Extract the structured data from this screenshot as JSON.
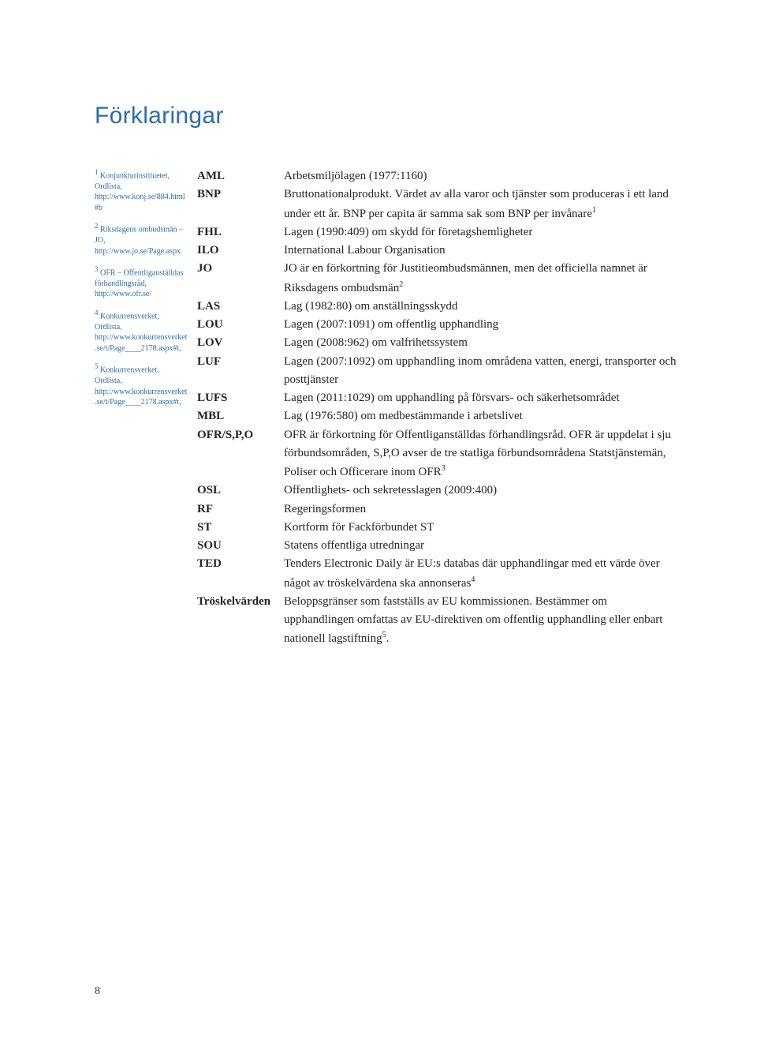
{
  "title": "Förklaringar",
  "page_number": "8",
  "colors": {
    "title": "#2a6ea8",
    "sidenote": "#2a6ea8",
    "body": "#252525",
    "background": "#ffffff"
  },
  "typography": {
    "title_fontsize_pt": 22,
    "body_fontsize_pt": 11,
    "sidenote_fontsize_pt": 7,
    "body_family": "serif",
    "title_family": "sans-serif-light"
  },
  "sidenotes": [
    {
      "num": "1",
      "text": "Konjunkturinstituetet, Ordlista, http://www.konj.se/884.html#b"
    },
    {
      "num": "2",
      "text": "Riksdagens ombudsmän – JO, http://www.jo.se/Page.aspx"
    },
    {
      "num": "3",
      "text": "OFR – Offentliganställdas förhandlingsråd, http://www.ofr.se/"
    },
    {
      "num": "4",
      "text": "Konkurrensverket, Ordlista, http://www.konkurrensverket.se/t/Page____2178.aspx#t,"
    },
    {
      "num": "5",
      "text": "Konkurrensverket, Ordlista, http://www.konkurrensverket.se/t/Page____2178.aspx#t,"
    }
  ],
  "glossary": [
    {
      "term": "AML",
      "def": "Arbetsmiljölagen (1977:1160)"
    },
    {
      "term": "BNP",
      "def": "Bruttonationalprodukt. Värdet av alla varor och tjänster som produceras i ett land under ett år. BNP per capita är samma sak som BNP per invånare",
      "sup_after": "1"
    },
    {
      "term": "FHL",
      "def": "Lagen (1990:409) om skydd för företagshemligheter"
    },
    {
      "term": "ILO",
      "def": "International Labour Organisation"
    },
    {
      "term": "JO",
      "def": "JO är en förkortning för Justitieombudsmännen, men det officiella namnet är Riksdagens ombudsmän",
      "sup_after": "2"
    },
    {
      "term": "LAS",
      "def": "Lag (1982:80) om anställningsskydd"
    },
    {
      "term": "LOU",
      "def": "Lagen (2007:1091) om offentlig upphandling"
    },
    {
      "term": "LOV",
      "def": "Lagen (2008:962) om valfrihetssystem"
    },
    {
      "term": "LUF",
      "def": "Lagen (2007:1092) om upphandling inom områdena vatten, energi, transporter och posttjänster"
    },
    {
      "term": "LUFS",
      "def": "Lagen (2011:1029) om upphandling på försvars- och säkerhetsområdet"
    },
    {
      "term": "MBL",
      "def": "Lag (1976:580) om medbestämmande i arbetslivet"
    },
    {
      "term": "OFR/S,P,O",
      "def": "OFR är förkortning för Offentliganställdas förhandlingsråd. OFR är uppdelat i sju förbundsområden, S,P,O avser de tre statliga förbundsområdena Statstjänstemän, Poliser och Officerare inom OFR",
      "sup_after": "3"
    },
    {
      "term": "OSL",
      "def": "Offentlighets- och sekretesslagen (2009:400)"
    },
    {
      "term": "RF",
      "def": "Regeringsformen"
    },
    {
      "term": "ST",
      "def": "Kortform för Fackförbundet ST"
    },
    {
      "term": "SOU",
      "def": "Statens offentliga utredningar"
    },
    {
      "term": "TED",
      "def": "Tenders Electronic Daily är EU:s databas där upphandlingar med ett värde över något av tröskelvärdena ska annonseras",
      "sup_after": "4"
    },
    {
      "term": "Tröskelvärden",
      "def": "Beloppsgränser som fastställs av EU kommissionen. Bestämmer om upphandlingen omfattas av EU-direktiven om offentlig upphandling eller enbart nationell lagstiftning",
      "sup_after": "5",
      "def_trailing": "."
    }
  ]
}
